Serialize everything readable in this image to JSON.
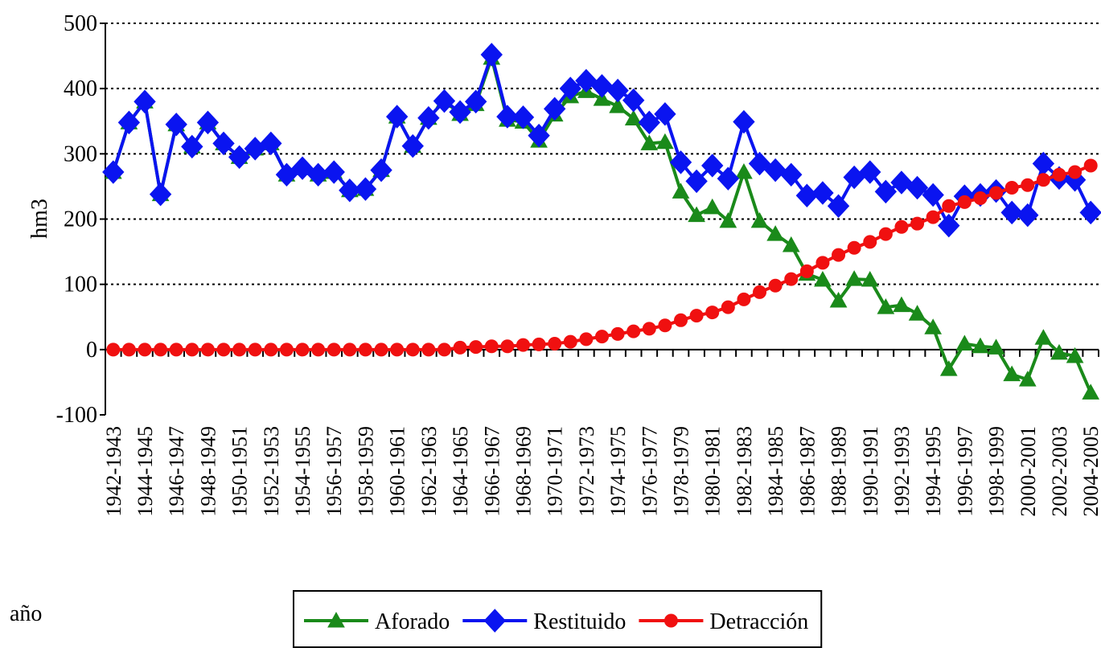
{
  "chart_data": {
    "type": "line",
    "x_label": "año",
    "y_label": "hm3",
    "categories": [
      "1942-1943",
      null,
      "1944-1945",
      null,
      "1946-1947",
      null,
      "1948-1949",
      null,
      "1950-1951",
      null,
      "1952-1953",
      null,
      "1954-1955",
      null,
      "1956-1957",
      null,
      "1958-1959",
      null,
      "1960-1961",
      null,
      "1962-1963",
      null,
      "1964-1965",
      null,
      "1966-1967",
      null,
      "1968-1969",
      null,
      "1970-1971",
      null,
      "1972-1973",
      null,
      "1974-1975",
      null,
      "1976-1977",
      null,
      "1978-1979",
      null,
      "1980-1981",
      null,
      "1982-1983",
      null,
      "1984-1985",
      null,
      "1986-1987",
      null,
      "1988-1989",
      null,
      "1990-1991",
      null,
      "1992-1993",
      null,
      "1994-1995",
      null,
      "1996-1997",
      null,
      "1998-1999",
      null,
      "2000-2001",
      null,
      "2002-2003",
      null,
      "2004-2005"
    ],
    "series": [
      {
        "name": "Aforado",
        "color": "#1a8a1a",
        "marker": "triangle",
        "values": [
          272,
          348,
          380,
          238,
          345,
          311,
          348,
          316,
          295,
          308,
          316,
          268,
          278,
          268,
          272,
          244,
          246,
          275,
          357,
          312,
          355,
          381,
          361,
          376,
          447,
          352,
          349,
          320,
          360,
          388,
          396,
          384,
          373,
          354,
          316,
          318,
          242,
          206,
          218,
          197,
          272,
          197,
          177,
          160,
          116,
          107,
          75,
          108,
          107,
          65,
          68,
          55,
          34,
          -30,
          9,
          5,
          3,
          -38,
          -46,
          18,
          -5,
          -10,
          -66
        ]
      },
      {
        "name": "Restituido",
        "color": "#0a14f0",
        "marker": "diamond",
        "values": [
          272,
          348,
          380,
          238,
          345,
          311,
          348,
          316,
          295,
          308,
          316,
          268,
          278,
          268,
          272,
          244,
          246,
          275,
          357,
          312,
          355,
          381,
          364,
          380,
          452,
          357,
          356,
          328,
          369,
          400,
          412,
          404,
          397,
          382,
          348,
          361,
          287,
          258,
          282,
          262,
          349,
          285,
          275,
          268,
          236,
          240,
          220,
          264,
          272,
          242,
          256,
          248,
          237,
          190,
          235,
          237,
          243,
          210,
          206,
          285,
          263,
          260,
          210
        ]
      },
      {
        "name": "Detracción",
        "color": "#f01010",
        "marker": "circle",
        "values": [
          0,
          0,
          0,
          0,
          0,
          0,
          0,
          0,
          0,
          0,
          0,
          0,
          0,
          0,
          0,
          0,
          0,
          0,
          0,
          0,
          0,
          0,
          3,
          4,
          5,
          5,
          7,
          8,
          9,
          12,
          16,
          20,
          24,
          28,
          32,
          37,
          45,
          52,
          57,
          65,
          77,
          88,
          98,
          108,
          120,
          133,
          145,
          156,
          165,
          177,
          188,
          193,
          203,
          220,
          226,
          232,
          240,
          248,
          252,
          260,
          268,
          272,
          282
        ]
      }
    ],
    "ylim": [
      -100,
      500
    ],
    "yticks": [
      -100,
      0,
      100,
      200,
      300,
      400,
      500
    ],
    "grid": true,
    "legend": "bottom"
  }
}
